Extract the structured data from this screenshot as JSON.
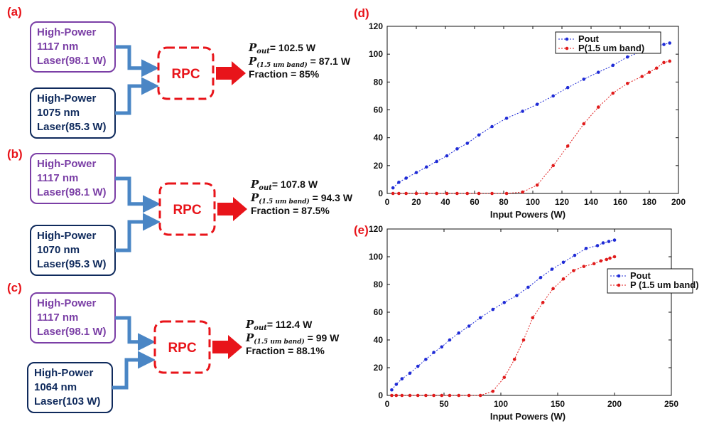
{
  "panels": [
    {
      "label": "(a)",
      "laser1": {
        "lines": [
          "High-Power",
          "1117 nm",
          "Laser(98.1 W)"
        ]
      },
      "laser2": {
        "lines": [
          "High-Power",
          "1075 nm",
          "Laser(85.3 W)"
        ]
      },
      "rpc": "RPC",
      "results": {
        "pout": "102.5 W",
        "pband": "87.1 W",
        "fraction": "Fraction = 85%"
      }
    },
    {
      "label": "(b)",
      "laser1": {
        "lines": [
          "High-Power",
          "1117 nm",
          "Laser(98.1 W)"
        ]
      },
      "laser2": {
        "lines": [
          "High-Power",
          "1070 nm",
          "Laser(95.3 W)"
        ]
      },
      "rpc": "RPC",
      "results": {
        "pout": "107.8 W",
        "pband": "94.3 W",
        "fraction": "Fraction = 87.5%"
      }
    },
    {
      "label": "(c)",
      "laser1": {
        "lines": [
          "High-Power",
          "1117 nm",
          "Laser(98.1 W)"
        ]
      },
      "laser2": {
        "lines": [
          "High-Power",
          "1064 nm",
          "Laser(103 W)"
        ]
      },
      "rpc": "RPC",
      "results": {
        "pout": "112.4 W",
        "pband": "99 W",
        "fraction": "Fraction = 88.1%"
      }
    }
  ],
  "symbols": {
    "pout_sym": "P",
    "pout_sub": "out",
    "pband_sym": "P",
    "pband_sub": "(1.5 um band)",
    "eq": "= "
  },
  "colors": {
    "purple": "#7b3fa6",
    "navy": "#0f2a5c",
    "red": "#e8141a",
    "arrow_blue": "#4a86c5",
    "series_blue": "#1f2bd6",
    "series_red": "#e01b1b"
  },
  "chart_data": [
    {
      "panel_label": "(d)",
      "type": "line",
      "xlabel": "Input Powers (W)",
      "ylabel": "",
      "xlim": [
        0,
        200
      ],
      "ylim": [
        0,
        120
      ],
      "xticks": [
        0,
        20,
        40,
        60,
        80,
        100,
        120,
        140,
        160,
        180,
        200
      ],
      "yticks": [
        0,
        20,
        40,
        60,
        80,
        100,
        120
      ],
      "legend_position": "top-right",
      "grid": false,
      "series": [
        {
          "name": "Pout",
          "color": "#1f2bd6",
          "x": [
            4,
            8,
            13,
            20,
            27,
            34,
            41,
            48,
            55,
            63,
            72,
            82,
            93,
            103,
            114,
            124,
            135,
            145,
            155,
            165,
            175,
            185,
            190,
            194
          ],
          "y": [
            4,
            8,
            11,
            15,
            19,
            23,
            27,
            32,
            36,
            42,
            48,
            54,
            59,
            64,
            70,
            76,
            82,
            87,
            92,
            98,
            102,
            106,
            107,
            108
          ]
        },
        {
          "name": "P(1.5 um band)",
          "color": "#e01b1b",
          "x": [
            4,
            8,
            13,
            20,
            27,
            34,
            41,
            48,
            55,
            63,
            72,
            82,
            93,
            103,
            114,
            124,
            135,
            145,
            155,
            165,
            175,
            180,
            185,
            190,
            194
          ],
          "y": [
            0,
            0,
            0,
            0,
            0,
            0,
            0,
            0,
            0,
            0,
            0,
            0,
            1,
            6,
            20,
            34,
            50,
            62,
            72,
            79,
            84,
            87,
            90,
            94,
            95
          ]
        }
      ]
    },
    {
      "panel_label": "(e)",
      "type": "line",
      "xlabel": "Input Powers (W)",
      "ylabel": "",
      "xlim": [
        0,
        250
      ],
      "ylim": [
        0,
        120
      ],
      "xticks": [
        0,
        50,
        100,
        150,
        200,
        250
      ],
      "yticks": [
        0,
        20,
        40,
        60,
        80,
        100,
        120
      ],
      "legend_position": "right",
      "grid": false,
      "series": [
        {
          "name": "Pout",
          "color": "#1f2bd6",
          "x": [
            4,
            8,
            13,
            20,
            27,
            34,
            41,
            48,
            55,
            63,
            72,
            82,
            93,
            103,
            114,
            124,
            135,
            145,
            155,
            165,
            175,
            185,
            190,
            195,
            200
          ],
          "y": [
            4,
            8,
            12,
            16,
            21,
            26,
            31,
            35,
            40,
            45,
            50,
            56,
            62,
            67,
            72,
            78,
            85,
            91,
            96,
            101,
            106,
            108,
            110,
            111,
            112
          ]
        },
        {
          "name": "P (1.5 um band)",
          "color": "#e01b1b",
          "x": [
            4,
            8,
            13,
            20,
            27,
            34,
            41,
            48,
            55,
            63,
            72,
            82,
            93,
            103,
            112,
            120,
            128,
            137,
            146,
            155,
            164,
            173,
            182,
            188,
            193,
            196,
            200
          ],
          "y": [
            0,
            0,
            0,
            0,
            0,
            0,
            0,
            0,
            0,
            0,
            0,
            0,
            3,
            13,
            26,
            40,
            56,
            67,
            77,
            84,
            90,
            93,
            95,
            97,
            98,
            99,
            100
          ]
        }
      ]
    }
  ]
}
